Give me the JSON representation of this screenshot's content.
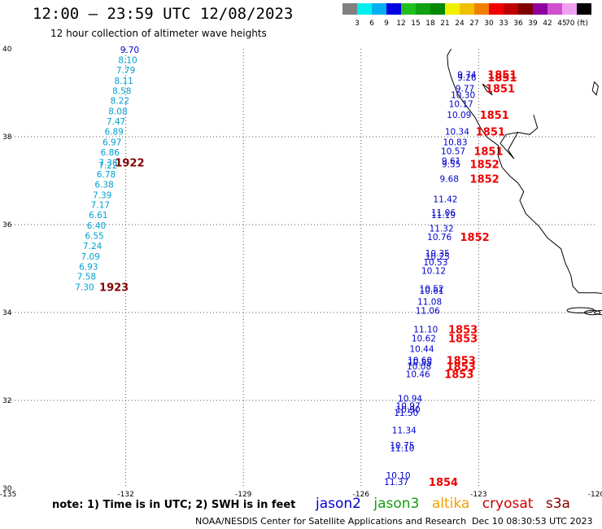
{
  "header": {
    "title": "12:00 – 23:59 UTC 12/08/2023",
    "subtitle": "12 hour collection of altimeter wave heights"
  },
  "color_scale": {
    "labels": [
      "3",
      "6",
      "9",
      "12",
      "15",
      "18",
      "21",
      "24",
      "27",
      "30",
      "33",
      "36",
      "39",
      "42",
      "45",
      "70 (ft)"
    ],
    "colors": [
      "#808080",
      "#00f0f0",
      "#00b0f0",
      "#0000e0",
      "#20c020",
      "#10a010",
      "#008800",
      "#f0f000",
      "#f0c000",
      "#f08000",
      "#f00000",
      "#c00000",
      "#800000",
      "#9000a0",
      "#d050d0",
      "#f0a0f0",
      "#000000"
    ]
  },
  "axes": {
    "lat_ticks": [
      "40",
      "38",
      "36",
      "34",
      "32",
      "30"
    ],
    "lon_ticks": [
      "-135",
      "-132",
      "-129",
      "-126",
      "-123",
      "-120"
    ]
  },
  "tracks": [
    {
      "color": "#00a0d0",
      "points": [
        {
          "lon": -131.9,
          "lat": 39.98,
          "v": "9.70",
          "c": "#0000cc"
        },
        {
          "lon": -131.95,
          "lat": 39.75,
          "v": "8.10"
        },
        {
          "lon": -132.0,
          "lat": 39.52,
          "v": "7.79"
        },
        {
          "lon": -132.05,
          "lat": 39.28,
          "v": "8.11"
        },
        {
          "lon": -132.1,
          "lat": 39.05,
          "v": "8.58"
        },
        {
          "lon": -132.15,
          "lat": 38.82,
          "v": "8.22"
        },
        {
          "lon": -132.2,
          "lat": 38.58,
          "v": "8.08"
        },
        {
          "lon": -132.25,
          "lat": 38.35,
          "v": "7.47"
        },
        {
          "lon": -132.3,
          "lat": 38.12,
          "v": "6.89"
        },
        {
          "lon": -132.35,
          "lat": 37.88,
          "v": "6.97"
        },
        {
          "lon": -132.4,
          "lat": 37.65,
          "v": "6.86"
        },
        {
          "lon": -132.45,
          "lat": 37.42,
          "v": "7.38"
        },
        {
          "lon": -132.45,
          "lat": 37.35,
          "v": "7.22"
        },
        {
          "lon": -132.5,
          "lat": 37.15,
          "v": "6.78"
        },
        {
          "lon": -132.55,
          "lat": 36.92,
          "v": "6.38"
        },
        {
          "lon": -132.6,
          "lat": 36.68,
          "v": "7.39"
        },
        {
          "lon": -132.65,
          "lat": 36.45,
          "v": "7.17"
        },
        {
          "lon": -132.7,
          "lat": 36.22,
          "v": "6.61"
        },
        {
          "lon": -132.75,
          "lat": 35.98,
          "v": "6.40"
        },
        {
          "lon": -132.8,
          "lat": 35.75,
          "v": "6.55"
        },
        {
          "lon": -132.85,
          "lat": 35.52,
          "v": "7.24"
        },
        {
          "lon": -132.9,
          "lat": 35.28,
          "v": "7.09"
        },
        {
          "lon": -132.95,
          "lat": 35.05,
          "v": "6.93"
        },
        {
          "lon": -133.0,
          "lat": 34.82,
          "v": "7.58"
        },
        {
          "lon": -133.05,
          "lat": 34.58,
          "v": "7.30"
        }
      ],
      "times": [
        {
          "lon": -131.9,
          "lat": 37.42,
          "t": "1922",
          "c": "#800000"
        },
        {
          "lon": -132.3,
          "lat": 34.58,
          "t": "1923",
          "c": "#800000"
        }
      ]
    },
    {
      "color": "#0000cc",
      "points": [
        {
          "lon": -123.3,
          "lat": 39.42,
          "v": "9.74"
        },
        {
          "lon": -123.3,
          "lat": 39.35,
          "v": "9.26"
        },
        {
          "lon": -123.35,
          "lat": 39.1,
          "v": "9.77"
        },
        {
          "lon": -123.4,
          "lat": 38.95,
          "v": "10.30"
        },
        {
          "lon": -123.45,
          "lat": 38.75,
          "v": "10.17"
        },
        {
          "lon": -123.5,
          "lat": 38.5,
          "v": "10.09"
        },
        {
          "lon": -123.55,
          "lat": 38.12,
          "v": "10.34"
        },
        {
          "lon": -123.6,
          "lat": 37.88,
          "v": "10.83"
        },
        {
          "lon": -123.65,
          "lat": 37.68,
          "v": "10.57"
        },
        {
          "lon": -123.7,
          "lat": 37.45,
          "v": "9.61"
        },
        {
          "lon": -123.7,
          "lat": 37.38,
          "v": "9.55"
        },
        {
          "lon": -123.75,
          "lat": 37.05,
          "v": "9.68"
        },
        {
          "lon": -123.85,
          "lat": 36.58,
          "v": "11.42"
        },
        {
          "lon": -123.9,
          "lat": 36.28,
          "v": "11.06"
        },
        {
          "lon": -123.9,
          "lat": 36.22,
          "v": "11.19"
        },
        {
          "lon": -123.95,
          "lat": 35.92,
          "v": "11.32"
        },
        {
          "lon": -124.0,
          "lat": 35.72,
          "v": "10.76"
        },
        {
          "lon": -124.05,
          "lat": 35.35,
          "v": "10.35"
        },
        {
          "lon": -124.05,
          "lat": 35.28,
          "v": "10.25"
        },
        {
          "lon": -124.1,
          "lat": 35.15,
          "v": "10.53"
        },
        {
          "lon": -124.15,
          "lat": 34.95,
          "v": "10.12"
        },
        {
          "lon": -124.2,
          "lat": 34.55,
          "v": "10.52"
        },
        {
          "lon": -124.2,
          "lat": 34.5,
          "v": "10.61"
        },
        {
          "lon": -124.25,
          "lat": 34.25,
          "v": "11.08"
        },
        {
          "lon": -124.3,
          "lat": 34.05,
          "v": "11.06"
        },
        {
          "lon": -124.35,
          "lat": 33.62,
          "v": "11.10"
        },
        {
          "lon": -124.4,
          "lat": 33.42,
          "v": "10.62"
        },
        {
          "lon": -124.45,
          "lat": 33.18,
          "v": "10.44"
        },
        {
          "lon": -124.5,
          "lat": 32.92,
          "v": "10.60"
        },
        {
          "lon": -124.5,
          "lat": 32.87,
          "v": "10.55"
        },
        {
          "lon": -124.52,
          "lat": 32.78,
          "v": "10.08"
        },
        {
          "lon": -124.55,
          "lat": 32.6,
          "v": "10.46"
        },
        {
          "lon": -124.75,
          "lat": 32.05,
          "v": "10.94"
        },
        {
          "lon": -124.8,
          "lat": 31.88,
          "v": "10.97"
        },
        {
          "lon": -124.8,
          "lat": 31.8,
          "v": "10.90"
        },
        {
          "lon": -124.85,
          "lat": 31.72,
          "v": "11.50"
        },
        {
          "lon": -124.9,
          "lat": 31.32,
          "v": "11.34"
        },
        {
          "lon": -124.95,
          "lat": 30.98,
          "v": "10.75"
        },
        {
          "lon": -124.95,
          "lat": 30.92,
          "v": "11.10"
        },
        {
          "lon": -125.05,
          "lat": 30.3,
          "v": "10.10"
        },
        {
          "lon": -125.1,
          "lat": 30.15,
          "v": "11.37"
        }
      ],
      "times": [
        {
          "lon": -122.4,
          "lat": 39.42,
          "t": "1851",
          "c": "#ee0000"
        },
        {
          "lon": -122.4,
          "lat": 39.35,
          "t": "1851",
          "c": "#ee0000"
        },
        {
          "lon": -122.45,
          "lat": 39.1,
          "t": "1851",
          "c": "#ee0000"
        },
        {
          "lon": -122.6,
          "lat": 38.5,
          "t": "1851",
          "c": "#ee0000"
        },
        {
          "lon": -122.7,
          "lat": 38.12,
          "t": "1851",
          "c": "#ee0000"
        },
        {
          "lon": -122.75,
          "lat": 37.68,
          "t": "1851",
          "c": "#ee0000"
        },
        {
          "lon": -122.85,
          "lat": 37.38,
          "t": "1852",
          "c": "#ee0000"
        },
        {
          "lon": -122.85,
          "lat": 37.05,
          "t": "1852",
          "c": "#ee0000"
        },
        {
          "lon": -123.1,
          "lat": 35.72,
          "t": "1852",
          "c": "#ee0000"
        },
        {
          "lon": -123.4,
          "lat": 33.62,
          "t": "1853",
          "c": "#ee0000"
        },
        {
          "lon": -123.4,
          "lat": 33.42,
          "t": "1853",
          "c": "#ee0000"
        },
        {
          "lon": -123.45,
          "lat": 32.92,
          "t": "1853",
          "c": "#ee0000"
        },
        {
          "lon": -123.45,
          "lat": 32.78,
          "t": "1853",
          "c": "#ee0000"
        },
        {
          "lon": -123.5,
          "lat": 32.6,
          "t": "1853",
          "c": "#ee0000"
        },
        {
          "lon": -123.9,
          "lat": 30.15,
          "t": "1854",
          "c": "#ee0000"
        }
      ]
    }
  ],
  "footer": {
    "note": "note:  1) Time is in UTC; 2) SWH is in feet",
    "legend": [
      {
        "label": "jason2",
        "color": "#0000cc"
      },
      {
        "label": "jason3",
        "color": "#10a010"
      },
      {
        "label": "altika",
        "color": "#f0a000"
      },
      {
        "label": "cryosat",
        "color": "#cc0000"
      },
      {
        "label": "s3a",
        "color": "#800000"
      }
    ],
    "credit": "NOAA/NESDIS Center for Satellite Applications and Research",
    "timestamp": "Dec 10 08:30:53 UTC 2023"
  }
}
